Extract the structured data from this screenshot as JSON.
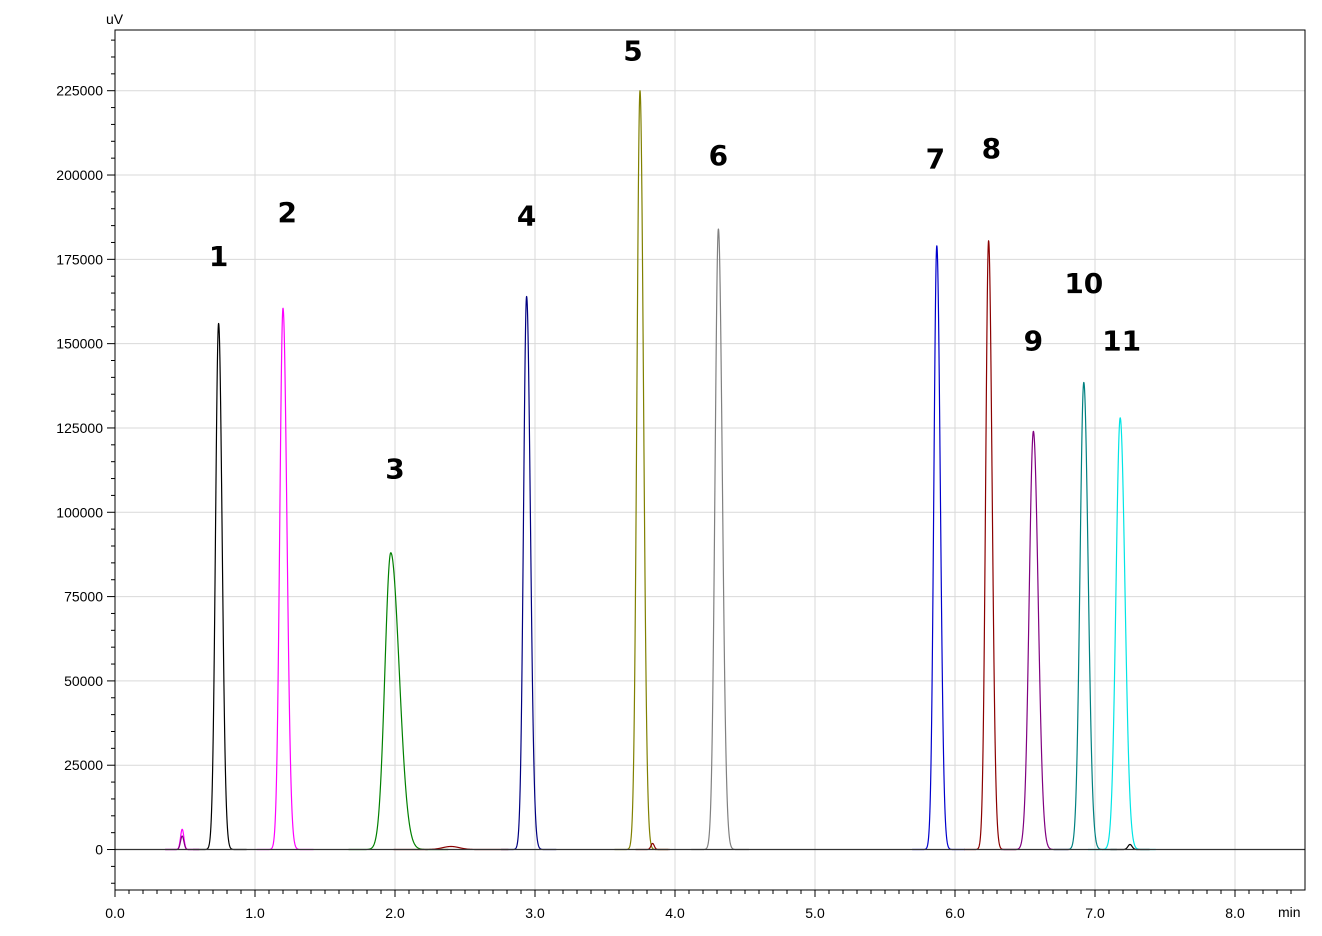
{
  "chart_data": {
    "type": "line",
    "title": "",
    "xlabel": "min",
    "ylabel": "uV",
    "xlim": [
      0.0,
      8.5
    ],
    "ylim": [
      -12000,
      243000
    ],
    "grid": true,
    "x_ticks": [
      "0.0",
      "1.0",
      "2.0",
      "3.0",
      "4.0",
      "5.0",
      "6.0",
      "7.0",
      "8.0"
    ],
    "y_ticks": [
      "0",
      "25000",
      "50000",
      "75000",
      "100000",
      "125000",
      "150000",
      "175000",
      "200000",
      "225000"
    ],
    "peaks": [
      {
        "label": "1",
        "rt": 0.74,
        "height": 156000,
        "width": 0.022,
        "tail": 0.025,
        "color": "#000000",
        "label_rt": 0.74,
        "label_y": 173000
      },
      {
        "label": "2",
        "rt": 1.2,
        "height": 160500,
        "width": 0.023,
        "tail": 0.028,
        "color": "#ff00ff",
        "label_rt": 1.23,
        "label_y": 186000
      },
      {
        "label": "3",
        "rt": 1.97,
        "height": 88000,
        "width": 0.042,
        "tail": 0.06,
        "color": "#008000",
        "label_rt": 2.0,
        "label_y": 110000
      },
      {
        "label": "4",
        "rt": 2.94,
        "height": 164000,
        "width": 0.022,
        "tail": 0.027,
        "color": "#000080",
        "label_rt": 2.94,
        "label_y": 185000
      },
      {
        "label": "5",
        "rt": 3.75,
        "height": 225000,
        "width": 0.022,
        "tail": 0.025,
        "color": "#808000",
        "label_rt": 3.7,
        "label_y": 234000
      },
      {
        "label": "6",
        "rt": 4.31,
        "height": 184000,
        "width": 0.024,
        "tail": 0.028,
        "color": "#808080",
        "label_rt": 4.31,
        "label_y": 203000
      },
      {
        "label": "7",
        "rt": 5.87,
        "height": 179000,
        "width": 0.021,
        "tail": 0.025,
        "color": "#0000cd",
        "label_rt": 5.86,
        "label_y": 202000
      },
      {
        "label": "8",
        "rt": 6.24,
        "height": 180500,
        "width": 0.021,
        "tail": 0.025,
        "color": "#8b0000",
        "label_rt": 6.26,
        "label_y": 205000
      },
      {
        "label": "9",
        "rt": 6.56,
        "height": 124000,
        "width": 0.03,
        "tail": 0.034,
        "color": "#800080",
        "label_rt": 6.56,
        "label_y": 148000
      },
      {
        "label": "10",
        "rt": 6.92,
        "height": 138500,
        "width": 0.027,
        "tail": 0.031,
        "color": "#008080",
        "label_rt": 6.92,
        "label_y": 165000
      },
      {
        "label": "11",
        "rt": 7.18,
        "height": 128000,
        "width": 0.03,
        "tail": 0.034,
        "color": "#00e5e5",
        "label_rt": 7.19,
        "label_y": 148000
      }
    ],
    "minor_peaks": [
      {
        "rt": 0.48,
        "height": 6000,
        "width": 0.012,
        "color": "#ff00ff"
      },
      {
        "rt": 0.48,
        "height": 4000,
        "width": 0.012,
        "color": "#800080"
      },
      {
        "rt": 2.4,
        "height": 900,
        "width": 0.06,
        "color": "#8b0000"
      },
      {
        "rt": 3.84,
        "height": 1800,
        "width": 0.012,
        "color": "#8b0000"
      },
      {
        "rt": 7.25,
        "height": 1500,
        "width": 0.015,
        "color": "#000000"
      }
    ]
  }
}
